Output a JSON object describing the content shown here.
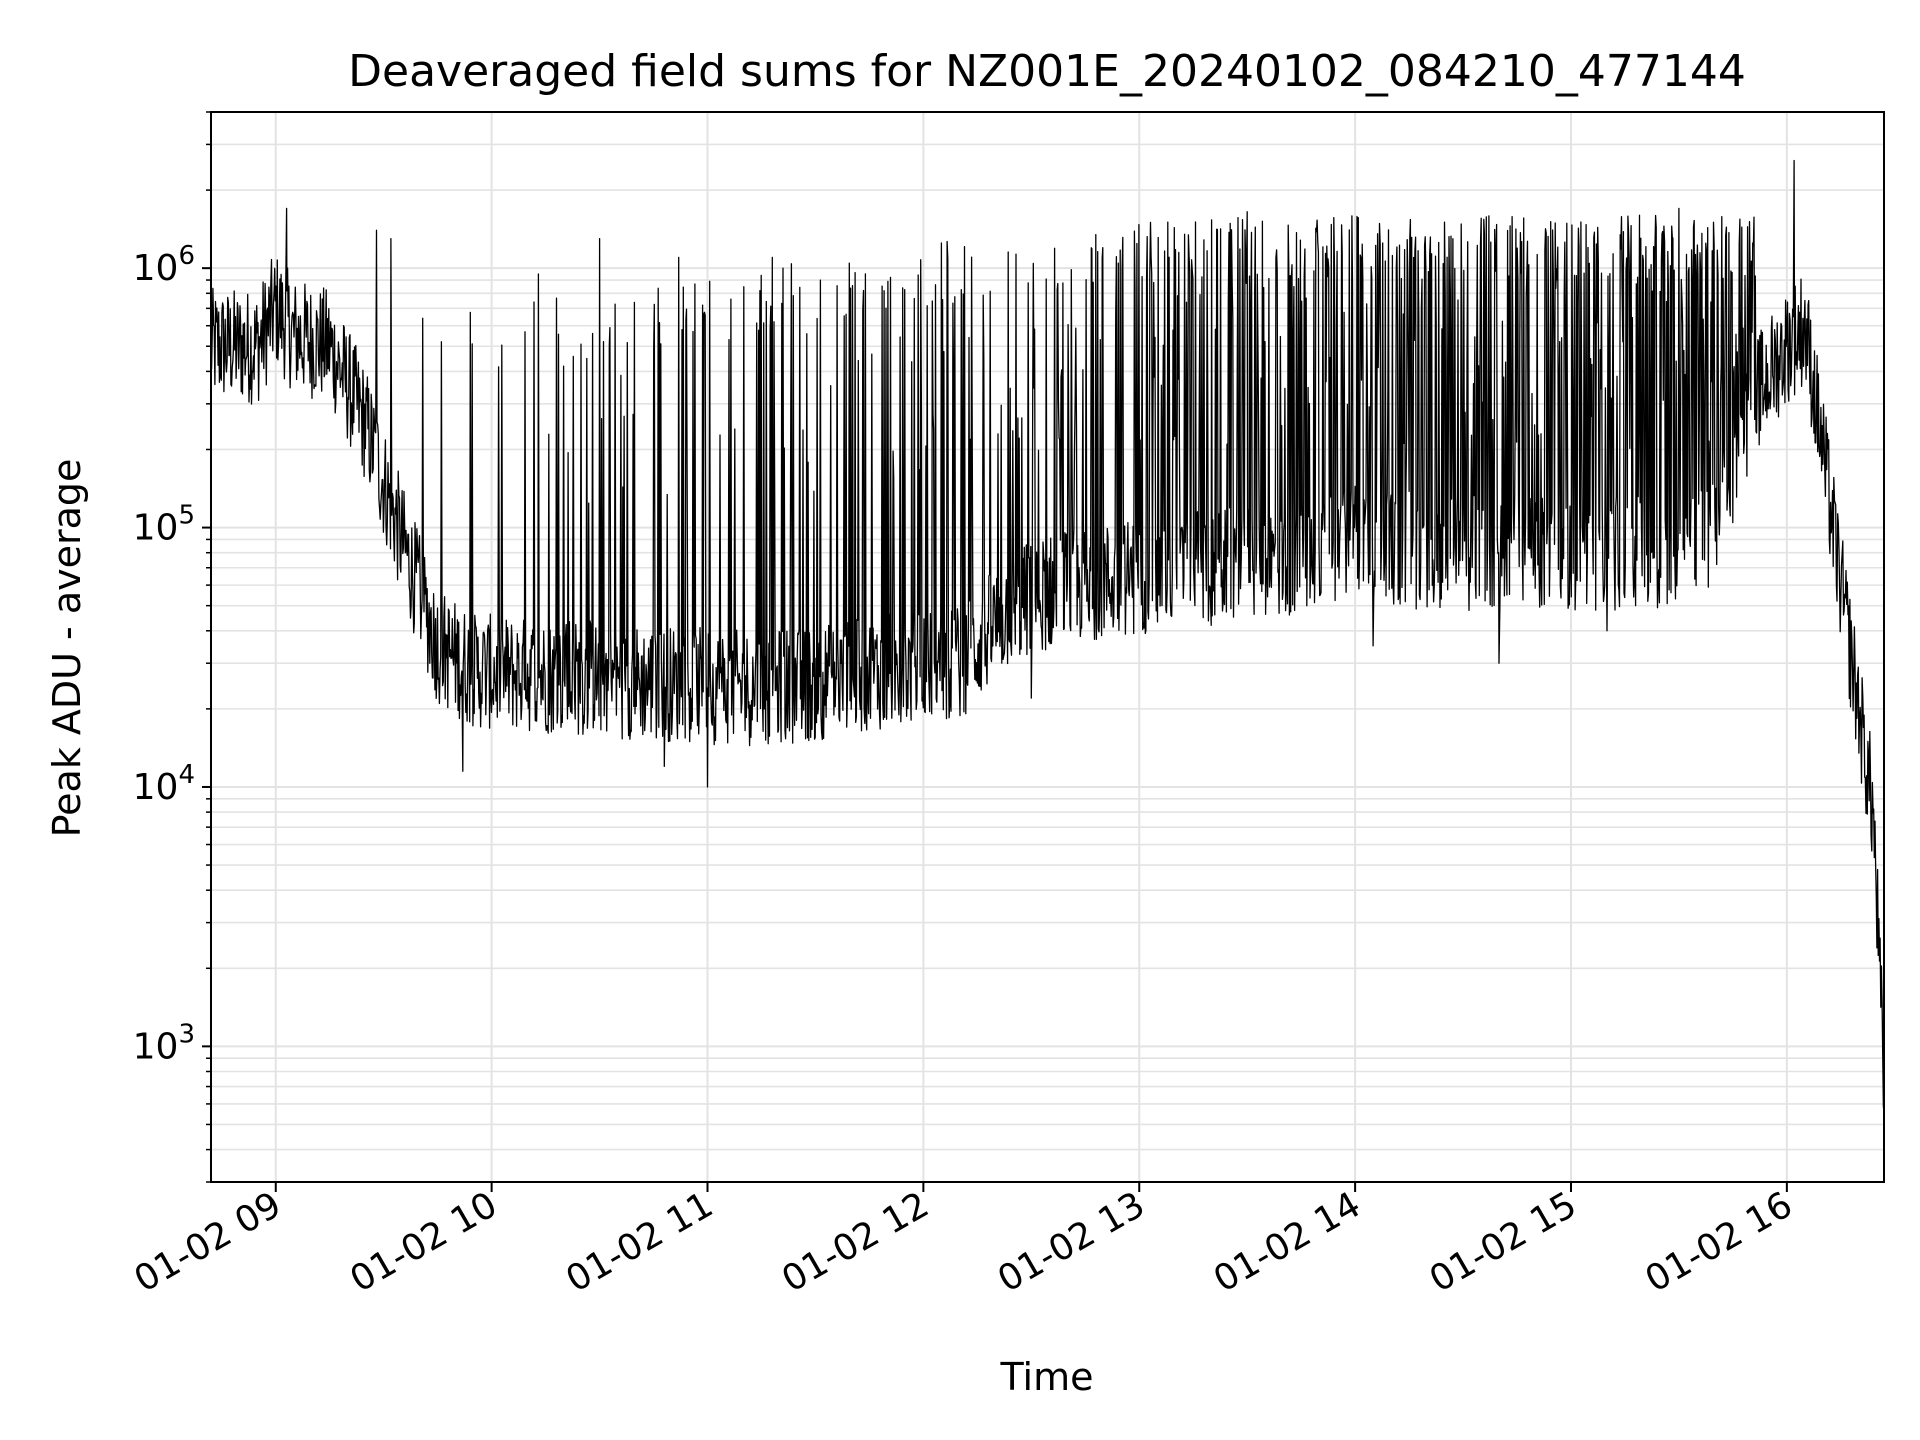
{
  "chart_data": {
    "type": "line",
    "title": "Deaveraged field sums for NZ001E_20240102_084210_477144",
    "xlabel": "Time",
    "ylabel": "Peak ADU - average",
    "yscale": "log",
    "xlim": [
      "2024-01-02 08:42",
      "2024-01-02 16:27"
    ],
    "ylim": [
      300,
      4000000
    ],
    "grid": true,
    "line_color": "#000000",
    "x_ticks": [
      {
        "label": "01-02 09",
        "time": "2024-01-02 09:00"
      },
      {
        "label": "01-02 10",
        "time": "2024-01-02 10:00"
      },
      {
        "label": "01-02 11",
        "time": "2024-01-02 11:00"
      },
      {
        "label": "01-02 12",
        "time": "2024-01-02 12:00"
      },
      {
        "label": "01-02 13",
        "time": "2024-01-02 13:00"
      },
      {
        "label": "01-02 14",
        "time": "2024-01-02 14:00"
      },
      {
        "label": "01-02 15",
        "time": "2024-01-02 15:00"
      },
      {
        "label": "01-02 16",
        "time": "2024-01-02 16:00"
      }
    ],
    "y_ticks": [
      {
        "base": "10",
        "exp": "3",
        "value": 1000
      },
      {
        "base": "10",
        "exp": "4",
        "value": 10000
      },
      {
        "base": "10",
        "exp": "5",
        "value": 100000
      },
      {
        "base": "10",
        "exp": "6",
        "value": 1000000
      }
    ],
    "baseline": {
      "x": [
        "2024-01-02 08:42",
        "2024-01-02 08:55",
        "2024-01-02 09:00",
        "2024-01-02 09:05",
        "2024-01-02 09:15",
        "2024-01-02 09:25",
        "2024-01-02 09:35",
        "2024-01-02 09:45",
        "2024-01-02 09:55",
        "2024-01-02 10:10",
        "2024-01-02 10:30",
        "2024-01-02 10:50",
        "2024-01-02 11:10",
        "2024-01-02 11:30",
        "2024-01-02 11:50",
        "2024-01-02 12:10",
        "2024-01-02 12:25",
        "2024-01-02 12:40",
        "2024-01-02 13:00",
        "2024-01-02 13:20",
        "2024-01-02 13:40",
        "2024-01-02 14:00",
        "2024-01-02 14:20",
        "2024-01-02 14:40",
        "2024-01-02 15:00",
        "2024-01-02 15:20",
        "2024-01-02 15:40",
        "2024-01-02 15:50",
        "2024-01-02 16:00",
        "2024-01-02 16:05",
        "2024-01-02 16:10",
        "2024-01-02 16:15",
        "2024-01-02 16:20",
        "2024-01-02 16:24",
        "2024-01-02 16:27"
      ],
      "y": [
        500000,
        500000,
        700000,
        550000,
        500000,
        250000,
        90000,
        35000,
        28000,
        27000,
        26000,
        25000,
        24000,
        25000,
        28000,
        30000,
        50000,
        60000,
        65000,
        70000,
        75000,
        90000,
        80000,
        80000,
        80000,
        80000,
        90000,
        300000,
        500000,
        600000,
        200000,
        60000,
        20000,
        8000,
        700
      ]
    },
    "spikes": {
      "low_x": [
        "2024-01-02 09:52",
        "2024-01-02 10:48",
        "2024-01-02 11:00",
        "2024-01-02 12:30",
        "2024-01-02 13:20",
        "2024-01-02 14:05",
        "2024-01-02 14:40",
        "2024-01-02 15:10"
      ],
      "low_y": [
        11500,
        12000,
        10000,
        22000,
        42000,
        35000,
        30000,
        40000
      ],
      "high_x": [
        "2024-01-02 09:03",
        "2024-01-02 09:28",
        "2024-01-02 09:32",
        "2024-01-02 10:13",
        "2024-01-02 10:30",
        "2024-01-02 10:52",
        "2024-01-02 11:18",
        "2024-01-02 12:05",
        "2024-01-02 13:30",
        "2024-01-02 14:05",
        "2024-01-02 14:40",
        "2024-01-02 15:30",
        "2024-01-02 16:02"
      ],
      "high_y": [
        1700000,
        1400000,
        1300000,
        950000,
        1300000,
        1100000,
        1100000,
        1250000,
        1650000,
        1700000,
        1700000,
        1700000,
        2600000
      ],
      "envelope_x": [
        "2024-01-02 09:45",
        "2024-01-02 10:30",
        "2024-01-02 11:10",
        "2024-01-02 11:40",
        "2024-01-02 12:10",
        "2024-01-02 12:40",
        "2024-01-02 13:00",
        "2024-01-02 13:40",
        "2024-01-02 14:20",
        "2024-01-02 15:00",
        "2024-01-02 15:40"
      ],
      "envelope_y": [
        700000,
        800000,
        1000000,
        1100000,
        1300000,
        1500000,
        1550000,
        1600000,
        1600000,
        1600000,
        1600000
      ]
    }
  }
}
